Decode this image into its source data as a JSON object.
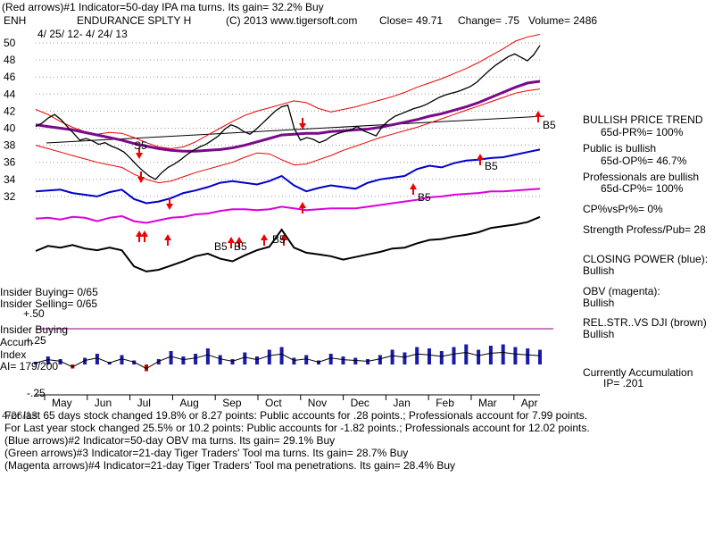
{
  "header": {
    "line1": "(Red arrows)#1 Indicator=50-day IPA ma turns. Its gain= 32.2% Buy",
    "ticker": "ENH",
    "company": "ENDURANCE SPLTY H",
    "copyright": "(C) 2013 www.tigersoft.com",
    "close": "Close=  49.71",
    "change": "Change= .75",
    "volume": "Volume= 2486",
    "date_range": "4/ 25/ 12-  4/ 24/ 13"
  },
  "chart_data": {
    "type": "line",
    "title": "ENDURANCE SPLTY H",
    "x_labels": [
      "May",
      "Jun",
      "Jul",
      "Aug",
      "Sep",
      "Oct",
      "Nov",
      "Dec",
      "Jan",
      "Feb",
      "Mar",
      "Apr"
    ],
    "price_axis": {
      "ticks": [
        50,
        48,
        46,
        44,
        42,
        40,
        38,
        36,
        34,
        32
      ],
      "ylim": [
        31,
        51
      ]
    },
    "accum_axis": {
      "ticks": [
        "+.50",
        "+.25",
        "-.25"
      ]
    },
    "price": [
      40.2,
      40.6,
      41.2,
      41.6,
      41.0,
      40.2,
      39.4,
      38.6,
      38.8,
      38.5,
      38.1,
      38.3,
      37.9,
      37.6,
      37.2,
      36.5,
      35.7,
      35.0,
      34.4,
      34.0,
      34.8,
      35.4,
      35.8,
      36.3,
      36.9,
      37.4,
      37.8,
      38.1,
      38.6,
      39.1,
      39.9,
      40.4,
      40.1,
      39.6,
      39.3,
      39.9,
      40.6,
      41.3,
      42.0,
      42.5,
      42.7,
      40.0,
      38.6,
      38.9,
      38.7,
      38.3,
      38.6,
      39.1,
      39.4,
      39.6,
      39.8,
      40.2,
      39.7,
      39.4,
      39.1,
      40.2,
      40.9,
      41.4,
      41.7,
      42.0,
      42.3,
      42.5,
      42.8,
      43.2,
      43.6,
      43.9,
      44.1,
      44.3,
      44.6,
      44.9,
      45.4,
      46.1,
      46.8,
      47.4,
      47.9,
      48.4,
      48.7,
      48.3,
      47.9,
      48.6,
      49.71
    ],
    "upper_band": [
      42.2,
      41.6,
      40.8,
      40.1,
      39.6,
      39.3,
      39.5,
      39.4,
      38.9,
      38.3,
      37.8,
      37.6,
      37.8,
      38.4,
      39.2,
      40.0,
      40.8,
      41.5,
      42.0,
      42.4,
      42.8,
      43.2,
      43.0,
      42.3,
      41.9,
      42.2,
      42.5,
      42.9,
      43.3,
      43.7,
      44.2,
      44.8,
      45.3,
      45.8,
      46.4,
      47.0,
      47.7,
      48.5,
      49.3,
      50.2,
      50.7,
      51.0
    ],
    "lower_band": [
      38.0,
      37.6,
      37.2,
      36.8,
      36.4,
      36.0,
      35.7,
      35.4,
      34.6,
      34.0,
      33.6,
      33.8,
      34.3,
      34.8,
      35.2,
      35.6,
      36.0,
      36.6,
      37.1,
      37.0,
      36.3,
      35.7,
      35.8,
      36.3,
      36.8,
      37.4,
      37.9,
      38.4,
      38.9,
      39.3,
      39.7,
      40.1,
      40.6,
      41.1,
      41.6,
      42.1,
      42.6,
      43.1,
      43.6,
      44.1,
      44.4,
      44.6
    ],
    "ma": [
      40.4,
      40.2,
      40.0,
      39.8,
      39.5,
      39.2,
      38.9,
      38.6,
      38.2,
      37.9,
      37.6,
      37.4,
      37.3,
      37.3,
      37.4,
      37.5,
      37.7,
      38.0,
      38.4,
      38.8,
      39.2,
      39.3,
      39.4,
      39.4,
      39.6,
      39.7,
      39.8,
      39.9,
      40.1,
      40.4,
      40.7,
      41.0,
      41.4,
      41.7,
      42.1,
      42.5,
      43.0,
      43.6,
      44.2,
      44.8,
      45.3,
      45.5
    ],
    "closing_power": [
      32.6,
      32.7,
      32.8,
      32.4,
      32.2,
      32.0,
      32.5,
      32.8,
      31.7,
      31.2,
      31.4,
      31.8,
      32.4,
      32.7,
      33.1,
      33.6,
      33.8,
      33.6,
      33.4,
      33.8,
      34.4,
      33.3,
      32.6,
      33.0,
      33.3,
      33.1,
      32.9,
      33.6,
      34.0,
      34.2,
      34.4,
      35.2,
      35.6,
      35.4,
      35.9,
      36.2,
      36.3,
      36.5,
      36.6,
      36.9,
      37.2,
      37.5
    ],
    "obv": [
      29.4,
      29.5,
      29.3,
      29.6,
      29.5,
      29.1,
      29.5,
      29.7,
      29.1,
      28.9,
      29.2,
      29.5,
      29.6,
      29.9,
      30.0,
      30.3,
      30.5,
      30.5,
      30.4,
      30.5,
      30.8,
      30.6,
      30.4,
      30.5,
      30.6,
      30.6,
      30.6,
      30.8,
      31.0,
      31.2,
      31.4,
      31.6,
      31.9,
      32.0,
      32.2,
      32.3,
      32.4,
      32.6,
      32.6,
      32.7,
      32.8,
      32.9
    ],
    "rel_strength": [
      25.6,
      26.2,
      26.0,
      26.3,
      25.9,
      25.7,
      26.0,
      25.7,
      23.8,
      23.2,
      23.4,
      23.9,
      24.4,
      25.0,
      25.3,
      24.7,
      24.4,
      25.1,
      25.7,
      26.1,
      28.1,
      26.0,
      25.4,
      25.2,
      25.0,
      24.6,
      24.9,
      25.2,
      25.5,
      25.9,
      26.0,
      26.5,
      26.9,
      27.0,
      27.3,
      27.5,
      27.8,
      28.3,
      28.5,
      28.7,
      29.0,
      29.6
    ],
    "accum_series": [
      0.02,
      0.06,
      0.04,
      -0.03,
      0.05,
      0.08,
      0.02,
      0.07,
      0.03,
      -0.05,
      0.04,
      0.1,
      0.06,
      0.08,
      0.12,
      0.07,
      0.04,
      0.09,
      0.06,
      0.11,
      0.13,
      0.05,
      0.07,
      0.03,
      0.08,
      0.06,
      0.05,
      0.04,
      0.07,
      0.11,
      0.09,
      0.13,
      0.12,
      0.1,
      0.13,
      0.15,
      0.11,
      0.14,
      0.15,
      0.13,
      0.12,
      0.11
    ]
  },
  "signals": [
    "S5",
    "B5",
    "B5",
    "B5",
    "B5",
    "B5",
    "B5"
  ],
  "side_panel": {
    "trend_title": "BULLISH PRICE TREND",
    "pr": "65d-PR%= 100%",
    "public": "Public is bullish",
    "op": "65d-OP%= 46.7%",
    "prof": "Professionals are bullish",
    "cp": "65d-CP%= 100%",
    "cpvspr": "CP%vsPr%=  0%",
    "strength": "Strength Profess/Pub= 28",
    "closing_power_title": "CLOSING POWER (blue):",
    "closing_power_val": "Bullish",
    "obv_title": "OBV (magenta):",
    "obv_val": "Bullish",
    "relstr_title": "REL.STR..VS DJI (brown)",
    "relstr_val": "Bullish",
    "currently": "Currently Accumulation",
    "ip": "IP=  .201"
  },
  "left_labels": {
    "insider_buying": "Insider Buying= 0/65",
    "insider_selling": "Insider Selling= 0/65",
    "insider_buying2": "Insider Buying",
    "accum": "Accum",
    "index": "Index",
    "ai": "AI= 179/200",
    "date_under": "4/26/13"
  },
  "footer": {
    "line1": "For last 65 days stock changed  19.8% or  8.27 points:  Public accounts for  .28 points.;  Professionals account for  7.99 points.",
    "line2": "For Last year stock changed  25.5% or  10.2 points:  Public accounts for -1.82 points.;  Professionals account for  12.02 points.",
    "line3": "(Blue arrows)#2 Indicator=50-day OBV ma turns. Its gain= 29.1% Buy",
    "line4": "(Green arrows)#3 Indicator=21-day Tiger Traders' Tool ma turns. Its gain= 28.7% Buy",
    "line5": "(Magenta arrows)#4 Indicator=21-day Tiger Traders' Tool ma penetrations. Its gain= 28.4% Buy"
  },
  "colors": {
    "price": "#000000",
    "band": "#ee0000",
    "ma": "#7a0a8a",
    "closing_power": "#0000cc",
    "obv": "#dd00dd",
    "rel_strength": "#000000",
    "accum": "#1a1aa8",
    "signal": "#ee0000"
  }
}
